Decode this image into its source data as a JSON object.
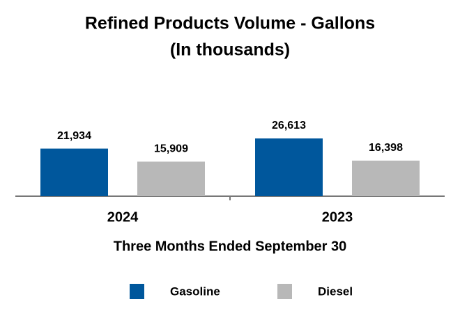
{
  "chart_data": {
    "type": "bar",
    "title": "Refined Products Volume - Gallons",
    "subtitle": "(In thousands)",
    "categories": [
      "2024",
      "2023"
    ],
    "x_label": "Three Months Ended September 30",
    "series": [
      {
        "name": "Gasoline",
        "color": "#00579c",
        "values": [
          21934,
          26613
        ],
        "value_labels": [
          "21,934",
          "26,613"
        ]
      },
      {
        "name": "Diesel",
        "color": "#b8b8b8",
        "values": [
          15909,
          16398
        ],
        "value_labels": [
          "15,909",
          "16,398"
        ]
      }
    ],
    "legend": "bottom"
  }
}
